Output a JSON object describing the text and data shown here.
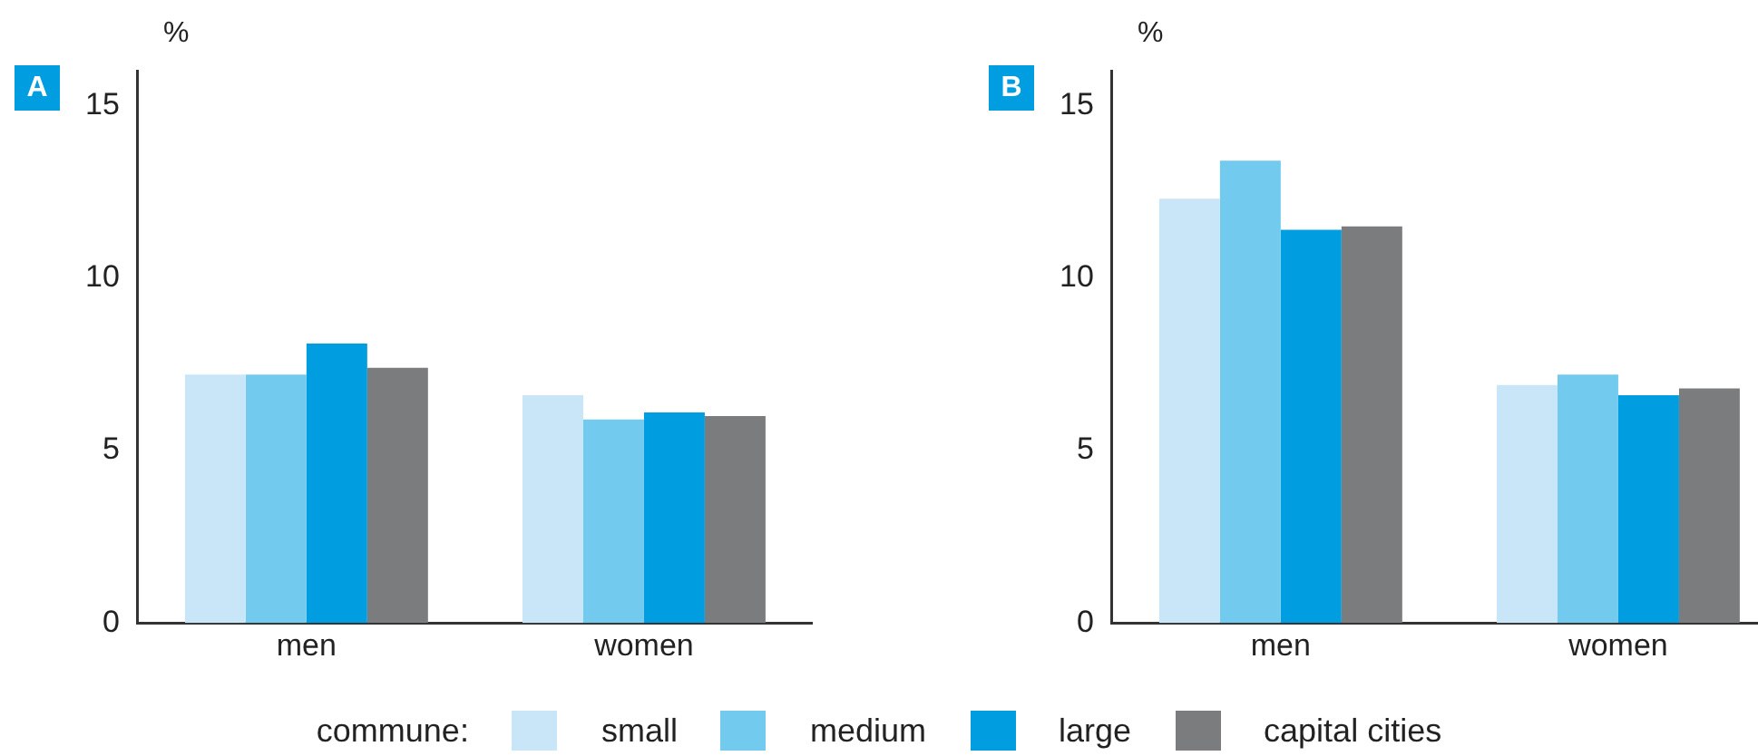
{
  "chart_data": [
    {
      "type": "bar",
      "title": "A",
      "ylabel": "%",
      "categories": [
        "men",
        "women"
      ],
      "ylim": [
        0,
        16
      ],
      "yticks": [
        0,
        5,
        10,
        15
      ],
      "grid": false,
      "legend": "bottom",
      "legend_title": "commune:",
      "series": [
        {
          "name": "small",
          "color": "#c8e6f7",
          "values": [
            7.2,
            6.6
          ]
        },
        {
          "name": "medium",
          "color": "#72caee",
          "values": [
            7.2,
            5.9
          ]
        },
        {
          "name": "large",
          "color": "#009ee0",
          "values": [
            8.1,
            6.1
          ]
        },
        {
          "name": "capital cities",
          "color": "#7b7c7e",
          "values": [
            7.4,
            6.0
          ]
        }
      ]
    },
    {
      "type": "bar",
      "title": "B",
      "ylabel": "%",
      "categories": [
        "men",
        "women"
      ],
      "ylim": [
        0,
        16
      ],
      "yticks": [
        0,
        5,
        10,
        15
      ],
      "grid": false,
      "series": [
        {
          "color": "#c8e6f7",
          "values": [
            12.3,
            6.9
          ]
        },
        {
          "color": "#72caee",
          "values": [
            13.4,
            7.2
          ]
        },
        {
          "color": "#009ee0",
          "values": [
            11.4,
            6.6
          ]
        },
        {
          "color": "#7b7c7e",
          "values": [
            11.5,
            6.8
          ]
        }
      ]
    }
  ]
}
